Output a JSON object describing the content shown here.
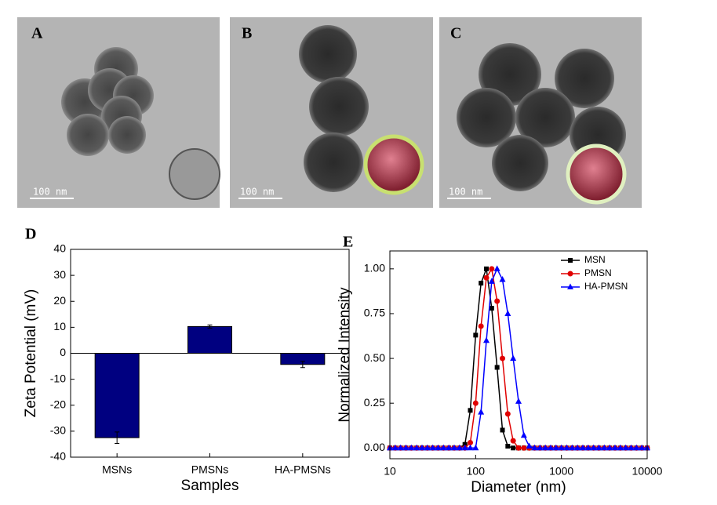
{
  "images": [
    {
      "label": "A",
      "scale_bar": "100 nm"
    },
    {
      "label": "B",
      "scale_bar": "100 nm"
    },
    {
      "label": "C",
      "scale_bar": "100 nm"
    }
  ],
  "chart_data": [
    {
      "type": "bar",
      "panel": "D",
      "xlabel": "Samples",
      "ylabel": "Zeta Potential (mV)",
      "categories": [
        "MSNs",
        "PMSNs",
        "HA-PMSNs"
      ],
      "values": [
        -32.5,
        10.3,
        -4.3
      ],
      "errors": [
        2.2,
        0.6,
        1.2
      ],
      "color": "#000080",
      "ylim": [
        -40,
        40
      ],
      "yticks": [
        -40,
        -30,
        -20,
        -10,
        0,
        10,
        20,
        30,
        40
      ]
    },
    {
      "type": "line",
      "panel": "E",
      "xlabel": "Diameter (nm)",
      "ylabel": "Normalized Intensity",
      "xscale": "log",
      "xlim": [
        10,
        10000
      ],
      "xticks": [
        10,
        100,
        1000,
        10000
      ],
      "ylim": [
        -0.06,
        1.1
      ],
      "yticks": [
        {
          "value": 0,
          "label": "0.00"
        },
        {
          "value": 0.25,
          "label": "0.25"
        },
        {
          "value": 0.5,
          "label": "0.50"
        },
        {
          "value": 0.75,
          "label": "0.75"
        },
        {
          "value": 1,
          "label": "1.00"
        }
      ],
      "legend": "upper right",
      "x": [
        10,
        11.55,
        13.34,
        15.4,
        17.78,
        20.54,
        23.71,
        27.38,
        31.62,
        36.52,
        42.17,
        48.7,
        56.23,
        64.94,
        74.99,
        86.6,
        100,
        115.5,
        133.4,
        154,
        177.8,
        205.4,
        237.1,
        273.8,
        316.2,
        365.2,
        421.7,
        487,
        562.3,
        649.4,
        749.9,
        866,
        1000,
        1155,
        1334,
        1540,
        1778,
        2054,
        2371,
        2738,
        3162,
        3652,
        4217,
        4870,
        5623,
        6494,
        7499,
        8660,
        10000
      ],
      "series": [
        {
          "name": "MSN",
          "color": "#000000",
          "marker": "square",
          "values": [
            0,
            0,
            0,
            0,
            0,
            0,
            0,
            0,
            0,
            0,
            0,
            0,
            0,
            0,
            0.02,
            0.21,
            0.63,
            0.92,
            1.0,
            0.78,
            0.45,
            0.1,
            0.01,
            0,
            0,
            0,
            0,
            0,
            0,
            0,
            0,
            0,
            0,
            0,
            0,
            0,
            0,
            0,
            0,
            0,
            0,
            0,
            0,
            0,
            0,
            0,
            0,
            0,
            0
          ]
        },
        {
          "name": "PMSN",
          "color": "#e00000",
          "marker": "circle",
          "values": [
            0,
            0,
            0,
            0,
            0,
            0,
            0,
            0,
            0,
            0,
            0,
            0,
            0,
            0,
            0,
            0.03,
            0.25,
            0.68,
            0.95,
            1.0,
            0.82,
            0.5,
            0.19,
            0.04,
            0,
            0,
            0,
            0,
            0,
            0,
            0,
            0,
            0,
            0,
            0,
            0,
            0,
            0,
            0,
            0,
            0,
            0,
            0,
            0,
            0,
            0,
            0,
            0,
            0
          ]
        },
        {
          "name": "HA-PMSN",
          "color": "#0000ff",
          "marker": "triangle",
          "values": [
            0,
            0,
            0,
            0,
            0,
            0,
            0,
            0,
            0,
            0,
            0,
            0,
            0,
            0,
            0,
            0,
            0,
            0.2,
            0.6,
            0.93,
            1.0,
            0.94,
            0.75,
            0.5,
            0.26,
            0.07,
            0.01,
            0,
            0,
            0,
            0,
            0,
            0,
            0,
            0,
            0,
            0,
            0,
            0,
            0,
            0,
            0,
            0,
            0,
            0,
            0,
            0,
            0,
            0
          ]
        }
      ]
    }
  ]
}
